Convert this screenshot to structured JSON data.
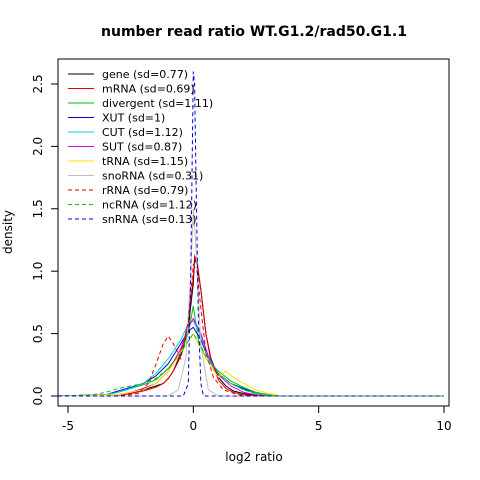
{
  "chart_data": {
    "type": "line",
    "title": "number read ratio WT.G1.2/rad50.G1.1",
    "xlabel": "log2 ratio",
    "ylabel": "density",
    "xlim": [
      -5.4,
      10.2
    ],
    "ylim": [
      -0.08,
      2.7
    ],
    "x_ticks": [
      -5,
      0,
      5,
      10
    ],
    "x_tick_labels": [
      "-5",
      "0",
      "5",
      "10"
    ],
    "y_ticks": [
      0.0,
      0.5,
      1.0,
      1.5,
      2.0,
      2.5
    ],
    "y_tick_labels": [
      "0.0",
      "0.5",
      "1.0",
      "1.5",
      "2.0",
      "2.5"
    ],
    "grid": false,
    "legend_position": "top-left",
    "series": [
      {
        "name": "gene (sd=0.77)",
        "color": "#000000",
        "dash": "solid",
        "points": [
          [
            -5.4,
            0
          ],
          [
            -3,
            0.005
          ],
          [
            -2.5,
            0.02
          ],
          [
            -2,
            0.05
          ],
          [
            -1.5,
            0.08
          ],
          [
            -1.2,
            0.1
          ],
          [
            -1,
            0.14
          ],
          [
            -0.8,
            0.2
          ],
          [
            -0.6,
            0.28
          ],
          [
            -0.4,
            0.38
          ],
          [
            -0.2,
            0.55
          ],
          [
            0,
            0.9
          ],
          [
            0.05,
            1.1
          ],
          [
            0.15,
            1.05
          ],
          [
            0.3,
            0.85
          ],
          [
            0.5,
            0.5
          ],
          [
            0.7,
            0.3
          ],
          [
            1,
            0.15
          ],
          [
            1.3,
            0.08
          ],
          [
            1.6,
            0.04
          ],
          [
            2,
            0.02
          ],
          [
            2.5,
            0.005
          ],
          [
            3,
            0
          ],
          [
            10,
            0
          ]
        ]
      },
      {
        "name": "mRNA (sd=0.69)",
        "color": "#DF0000",
        "dash": "solid",
        "points": [
          [
            -5.4,
            0
          ],
          [
            -3,
            0.005
          ],
          [
            -2.5,
            0.02
          ],
          [
            -2,
            0.04
          ],
          [
            -1.5,
            0.07
          ],
          [
            -1.2,
            0.1
          ],
          [
            -1,
            0.14
          ],
          [
            -0.8,
            0.2
          ],
          [
            -0.6,
            0.3
          ],
          [
            -0.4,
            0.42
          ],
          [
            -0.2,
            0.6
          ],
          [
            0,
            0.95
          ],
          [
            0.05,
            1.12
          ],
          [
            0.15,
            1.08
          ],
          [
            0.3,
            0.85
          ],
          [
            0.5,
            0.5
          ],
          [
            0.7,
            0.28
          ],
          [
            1,
            0.13
          ],
          [
            1.3,
            0.06
          ],
          [
            1.6,
            0.03
          ],
          [
            2,
            0.01
          ],
          [
            2.5,
            0
          ],
          [
            10,
            0
          ]
        ]
      },
      {
        "name": "divergent (sd=1.11)",
        "color": "#00C000",
        "dash": "solid",
        "points": [
          [
            -5.4,
            0
          ],
          [
            -3.5,
            0.01
          ],
          [
            -3,
            0.03
          ],
          [
            -2.5,
            0.06
          ],
          [
            -2,
            0.09
          ],
          [
            -1.5,
            0.13
          ],
          [
            -1,
            0.22
          ],
          [
            -0.5,
            0.35
          ],
          [
            -0.2,
            0.5
          ],
          [
            0,
            0.72
          ],
          [
            0.2,
            0.45
          ],
          [
            0.5,
            0.3
          ],
          [
            1,
            0.2
          ],
          [
            1.5,
            0.12
          ],
          [
            2,
            0.07
          ],
          [
            2.5,
            0.03
          ],
          [
            3,
            0.01
          ],
          [
            3.5,
            0
          ],
          [
            10,
            0
          ]
        ]
      },
      {
        "name": "XUT (sd=1)",
        "color": "#0000DD",
        "dash": "solid",
        "points": [
          [
            -5.4,
            0
          ],
          [
            -3.5,
            0.01
          ],
          [
            -3,
            0.04
          ],
          [
            -2.5,
            0.07
          ],
          [
            -2,
            0.1
          ],
          [
            -1.5,
            0.16
          ],
          [
            -1,
            0.26
          ],
          [
            -0.5,
            0.42
          ],
          [
            -0.2,
            0.52
          ],
          [
            0,
            0.55
          ],
          [
            0.3,
            0.45
          ],
          [
            0.6,
            0.3
          ],
          [
            1,
            0.18
          ],
          [
            1.5,
            0.1
          ],
          [
            2,
            0.06
          ],
          [
            2.5,
            0.02
          ],
          [
            3,
            0
          ],
          [
            10,
            0
          ]
        ]
      },
      {
        "name": "CUT (sd=1.12)",
        "color": "#00D5D5",
        "dash": "solid",
        "points": [
          [
            -5.4,
            0
          ],
          [
            -3.5,
            0.01
          ],
          [
            -3,
            0.03
          ],
          [
            -2.5,
            0.06
          ],
          [
            -2,
            0.1
          ],
          [
            -1.5,
            0.18
          ],
          [
            -1,
            0.3
          ],
          [
            -0.5,
            0.45
          ],
          [
            -0.2,
            0.58
          ],
          [
            0,
            0.6
          ],
          [
            0.3,
            0.48
          ],
          [
            0.6,
            0.3
          ],
          [
            1,
            0.18
          ],
          [
            1.5,
            0.1
          ],
          [
            2,
            0.05
          ],
          [
            2.5,
            0.02
          ],
          [
            3,
            0
          ],
          [
            10,
            0
          ]
        ]
      },
      {
        "name": "SUT (sd=0.87)",
        "color": "#E000E0",
        "dash": "solid",
        "points": [
          [
            -5.4,
            0
          ],
          [
            -3,
            0.01
          ],
          [
            -2.5,
            0.03
          ],
          [
            -2,
            0.06
          ],
          [
            -1.5,
            0.1
          ],
          [
            -1,
            0.2
          ],
          [
            -0.5,
            0.38
          ],
          [
            -0.2,
            0.55
          ],
          [
            0,
            0.62
          ],
          [
            0.3,
            0.5
          ],
          [
            0.6,
            0.32
          ],
          [
            1,
            0.17
          ],
          [
            1.5,
            0.08
          ],
          [
            2,
            0.03
          ],
          [
            2.5,
            0.01
          ],
          [
            3,
            0
          ],
          [
            10,
            0
          ]
        ]
      },
      {
        "name": "tRNA (sd=1.15)",
        "color": "#FFE000",
        "dash": "solid",
        "points": [
          [
            -5.4,
            0
          ],
          [
            -3,
            0.01
          ],
          [
            -2,
            0.05
          ],
          [
            -1.5,
            0.1
          ],
          [
            -1,
            0.2
          ],
          [
            -0.5,
            0.35
          ],
          [
            0,
            0.5
          ],
          [
            0.5,
            0.3
          ],
          [
            1,
            0.15
          ],
          [
            1.3,
            0.2
          ],
          [
            1.6,
            0.15
          ],
          [
            2,
            0.1
          ],
          [
            2.5,
            0.05
          ],
          [
            3,
            0.02
          ],
          [
            3.5,
            0
          ],
          [
            10,
            0
          ]
        ]
      },
      {
        "name": "snoRNA (sd=0.31)",
        "color": "#BEBEBE",
        "dash": "solid",
        "points": [
          [
            -5.4,
            0
          ],
          [
            -1,
            0
          ],
          [
            -0.6,
            0.05
          ],
          [
            -0.3,
            0.3
          ],
          [
            -0.1,
            1.0
          ],
          [
            0,
            1.5
          ],
          [
            0.1,
            1.2
          ],
          [
            0.3,
            0.4
          ],
          [
            0.6,
            0.05
          ],
          [
            1,
            0
          ],
          [
            10,
            0
          ]
        ]
      },
      {
        "name": "rRNA (sd=0.79)",
        "color": "#DF0000",
        "dash": "dashed",
        "points": [
          [
            -5.4,
            0
          ],
          [
            -3,
            0
          ],
          [
            -2.2,
            0.02
          ],
          [
            -1.8,
            0.1
          ],
          [
            -1.5,
            0.25
          ],
          [
            -1.2,
            0.42
          ],
          [
            -1,
            0.48
          ],
          [
            -0.8,
            0.42
          ],
          [
            -0.5,
            0.3
          ],
          [
            -0.2,
            0.6
          ],
          [
            0,
            1.05
          ],
          [
            0.15,
            1.0
          ],
          [
            0.3,
            0.7
          ],
          [
            0.5,
            0.35
          ],
          [
            0.8,
            0.15
          ],
          [
            1.2,
            0.05
          ],
          [
            1.8,
            0.01
          ],
          [
            2.5,
            0
          ],
          [
            10,
            0
          ]
        ]
      },
      {
        "name": "ncRNA (sd=1.12)",
        "color": "#00C000",
        "dash": "dashed",
        "points": [
          [
            -5.4,
            0
          ],
          [
            -4,
            0.01
          ],
          [
            -3.5,
            0.03
          ],
          [
            -3,
            0.06
          ],
          [
            -2.5,
            0.08
          ],
          [
            -2,
            0.1
          ],
          [
            -1.5,
            0.14
          ],
          [
            -1,
            0.22
          ],
          [
            -0.5,
            0.35
          ],
          [
            0,
            0.5
          ],
          [
            0.3,
            0.4
          ],
          [
            0.6,
            0.28
          ],
          [
            1,
            0.18
          ],
          [
            1.5,
            0.1
          ],
          [
            2,
            0.05
          ],
          [
            2.5,
            0.02
          ],
          [
            3,
            0
          ],
          [
            10,
            0
          ]
        ]
      },
      {
        "name": "snRNA (sd=0.13)",
        "color": "#0000DD",
        "dash": "dashed",
        "points": [
          [
            -5.4,
            0
          ],
          [
            -0.4,
            0
          ],
          [
            -0.2,
            0.1
          ],
          [
            -0.1,
            1.0
          ],
          [
            0,
            2.6
          ],
          [
            0.05,
            2.5
          ],
          [
            0.1,
            1.8
          ],
          [
            0.2,
            0.6
          ],
          [
            0.3,
            0.1
          ],
          [
            0.4,
            0
          ],
          [
            10,
            0
          ]
        ]
      }
    ]
  }
}
